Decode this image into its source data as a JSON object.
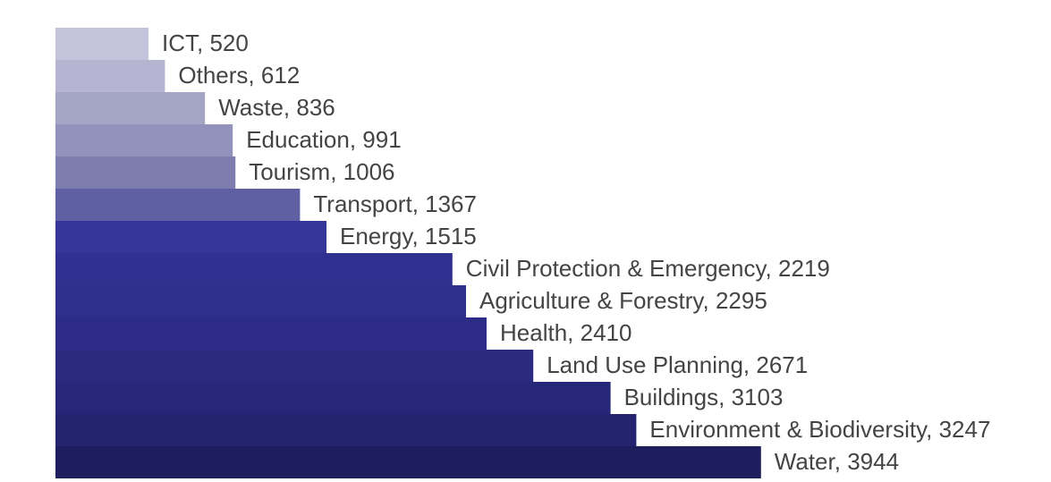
{
  "chart_data": {
    "type": "hbar",
    "categories": [
      "ICT",
      "Others",
      "Waste",
      "Education",
      "Tourism",
      "Transport",
      "Energy",
      "Civil Protection & Emergency",
      "Agriculture & Forestry",
      "Health",
      "Land Use Planning",
      "Buildings",
      "Environment & Biodiversity",
      "Water"
    ],
    "values": [
      520,
      612,
      836,
      991,
      1006,
      1367,
      1515,
      2219,
      2295,
      2410,
      2671,
      3103,
      3247,
      3944
    ],
    "colors": [
      "#c3c3dc",
      "#b5b5d2",
      "#a5a5c6",
      "#9292bc",
      "#7d7db0",
      "#5f5fa4",
      "#35359a",
      "#303090",
      "#2e2e8c",
      "#2c2c86",
      "#2a2a80",
      "#27277a",
      "#232370",
      "#1e1e5e"
    ]
  }
}
